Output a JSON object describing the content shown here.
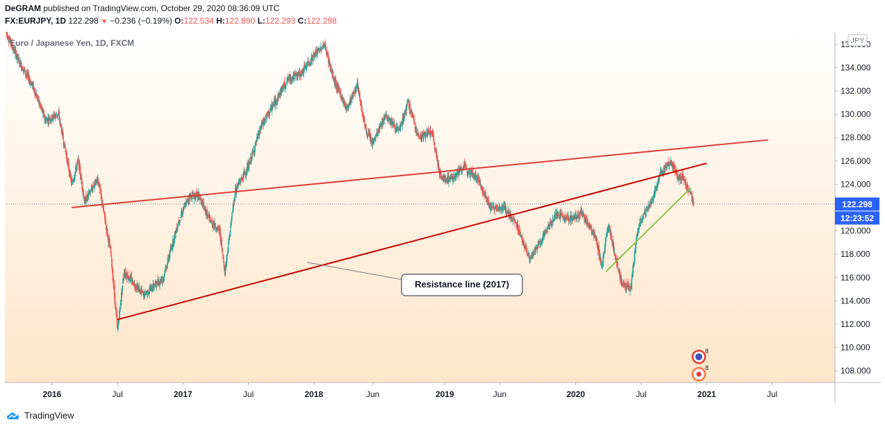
{
  "header": {
    "author": "DeGRAM",
    "published_text": "published on TradingView.com, October 29, 2020 08:36:09 UTC",
    "symbol": "FX:EURJPY, 1D",
    "price": "122.298",
    "change_arrow": "▼",
    "change": "−0.236 (−0.19%)",
    "open_label": "O:",
    "open": "122.534",
    "high_label": "H:",
    "high": "122.890",
    "low_label": "L:",
    "low": "122.293",
    "close_label": "C:",
    "close": "122.298"
  },
  "footer": {
    "brand": "TradingView"
  },
  "colors": {
    "up": "#26a69a",
    "down": "#ef5350",
    "resistance": "#cc0000",
    "channel": "#e03a3a",
    "support": "#8bc34a"
  },
  "chart_data": {
    "type": "candlestick",
    "title": "Euro / Japanese Yen, 1D, FXCM",
    "currency_label": "JPY",
    "last_price_label": "122.298",
    "countdown_label": "12:23:52",
    "ylim": [
      107.0,
      137.0
    ],
    "y_ticks": [
      "108.000",
      "110.000",
      "112.000",
      "114.000",
      "116.000",
      "118.000",
      "120.000",
      "122.000",
      "124.000",
      "126.000",
      "128.000",
      "130.000",
      "132.000",
      "134.000",
      "136.000"
    ],
    "x_ticks": [
      "2016",
      "Jul",
      "2017",
      "Jul",
      "2018",
      "Jun",
      "2019",
      "Jun",
      "2020",
      "Jul",
      "2021",
      "Jul"
    ],
    "x_tick_times": [
      2016.0,
      2016.5,
      2017.0,
      2017.5,
      2018.0,
      2018.45,
      2019.0,
      2019.42,
      2020.0,
      2020.5,
      2021.0,
      2021.5
    ],
    "xlim": [
      2015.64,
      2021.98
    ],
    "price_path": [
      [
        2015.65,
        137.0
      ],
      [
        2015.75,
        134.5
      ],
      [
        2015.85,
        132.5
      ],
      [
        2015.95,
        129.5
      ],
      [
        2016.05,
        130.0
      ],
      [
        2016.15,
        124.0
      ],
      [
        2016.2,
        126.0
      ],
      [
        2016.25,
        122.5
      ],
      [
        2016.35,
        124.5
      ],
      [
        2016.45,
        118.0
      ],
      [
        2016.5,
        111.5
      ],
      [
        2016.55,
        116.5
      ],
      [
        2016.7,
        114.5
      ],
      [
        2016.85,
        116.0
      ],
      [
        2016.97,
        121.0
      ],
      [
        2017.05,
        123.0
      ],
      [
        2017.12,
        123.0
      ],
      [
        2017.2,
        121.0
      ],
      [
        2017.28,
        120.0
      ],
      [
        2017.32,
        116.5
      ],
      [
        2017.4,
        123.5
      ],
      [
        2017.5,
        125.5
      ],
      [
        2017.6,
        129.0
      ],
      [
        2017.7,
        131.0
      ],
      [
        2017.8,
        133.0
      ],
      [
        2017.9,
        133.5
      ],
      [
        2018.0,
        135.0
      ],
      [
        2018.08,
        136.0
      ],
      [
        2018.15,
        133.0
      ],
      [
        2018.25,
        130.5
      ],
      [
        2018.33,
        132.5
      ],
      [
        2018.4,
        128.5
      ],
      [
        2018.45,
        127.5
      ],
      [
        2018.55,
        130.0
      ],
      [
        2018.65,
        128.5
      ],
      [
        2018.72,
        131.0
      ],
      [
        2018.8,
        128.0
      ],
      [
        2018.9,
        128.5
      ],
      [
        2018.97,
        124.5
      ],
      [
        2019.05,
        124.5
      ],
      [
        2019.15,
        125.5
      ],
      [
        2019.25,
        124.5
      ],
      [
        2019.35,
        122.0
      ],
      [
        2019.45,
        122.0
      ],
      [
        2019.55,
        120.5
      ],
      [
        2019.65,
        117.5
      ],
      [
        2019.75,
        119.5
      ],
      [
        2019.85,
        121.5
      ],
      [
        2019.95,
        121.0
      ],
      [
        2020.05,
        121.5
      ],
      [
        2020.15,
        119.5
      ],
      [
        2020.2,
        117.0
      ],
      [
        2020.25,
        120.5
      ],
      [
        2020.3,
        118.0
      ],
      [
        2020.35,
        115.5
      ],
      [
        2020.42,
        115.0
      ],
      [
        2020.47,
        120.0
      ],
      [
        2020.52,
        121.5
      ],
      [
        2020.58,
        122.5
      ],
      [
        2020.65,
        125.0
      ],
      [
        2020.72,
        126.0
      ],
      [
        2020.78,
        124.5
      ],
      [
        2020.83,
        124.5
      ],
      [
        2020.88,
        123.0
      ],
      [
        2020.9,
        122.3
      ]
    ],
    "trendlines": [
      {
        "name": "resistance-line-2017",
        "from": [
          2016.5,
          112.4
        ],
        "to": [
          2021.0,
          125.8
        ],
        "color": "#cc0000"
      },
      {
        "name": "upper-channel-line",
        "from": [
          2016.15,
          122.0
        ],
        "to": [
          2021.47,
          127.8
        ],
        "color": "#e03a3a"
      },
      {
        "name": "support-line-2020",
        "from": [
          2020.23,
          116.5
        ],
        "to": [
          2020.88,
          123.7
        ],
        "color": "#8bc34a"
      }
    ],
    "annotations": [
      {
        "text": "Resistance line (2017)",
        "anchor": [
          2017.95,
          117.3
        ]
      }
    ],
    "event_badges": [
      "8",
      "8"
    ]
  }
}
